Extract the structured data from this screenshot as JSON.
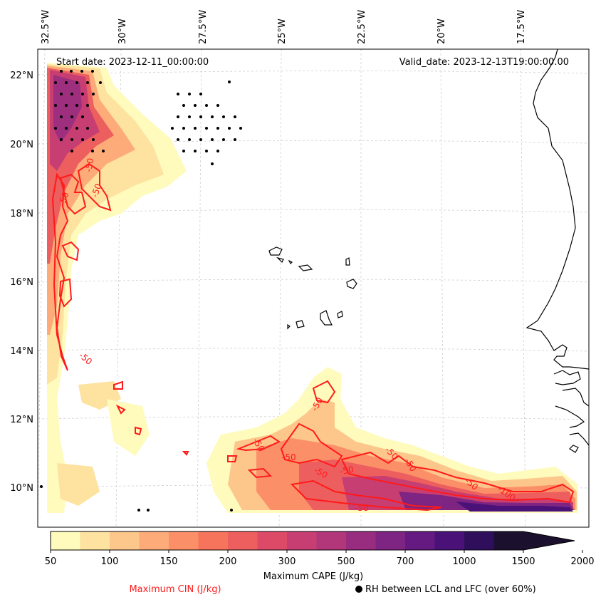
{
  "map": {
    "start_label": "Start date: 2023-12-11_00:00:00",
    "valid_label": "Valid_date: 2023-12-13T19:00:00.00",
    "lon_labels": [
      "32.5°W",
      "30°W",
      "27.5°W",
      "25°W",
      "22.5°W",
      "20°W",
      "17.5°W"
    ],
    "lat_labels": [
      "22°N",
      "20°N",
      "18°N",
      "16°N",
      "14°N",
      "12°N",
      "10°N"
    ],
    "contour_value": "-50",
    "contour_value_2": "-100"
  },
  "colorbar": {
    "levels": [
      "50",
      "100",
      "150",
      "200",
      "300",
      "500",
      "700",
      "1000",
      "1500",
      "2000"
    ],
    "colors": [
      "#fefbbd",
      "#fde2a0",
      "#fdc68b",
      "#fcab79",
      "#fb9068",
      "#f7745c",
      "#ed5e5f",
      "#dc4a68",
      "#c73e72",
      "#b1367a",
      "#982d7f",
      "#7e2482",
      "#641a80",
      "#4a1279",
      "#2f0f5b",
      "#1c102f"
    ],
    "label": "Maximum CAPE (J/kg)"
  },
  "legend": {
    "cin_label": "Maximum CIN (J/kg)",
    "rh_label": "RH between LCL and LFC (over 60%)",
    "cin_color": "#ff1a1a"
  }
}
